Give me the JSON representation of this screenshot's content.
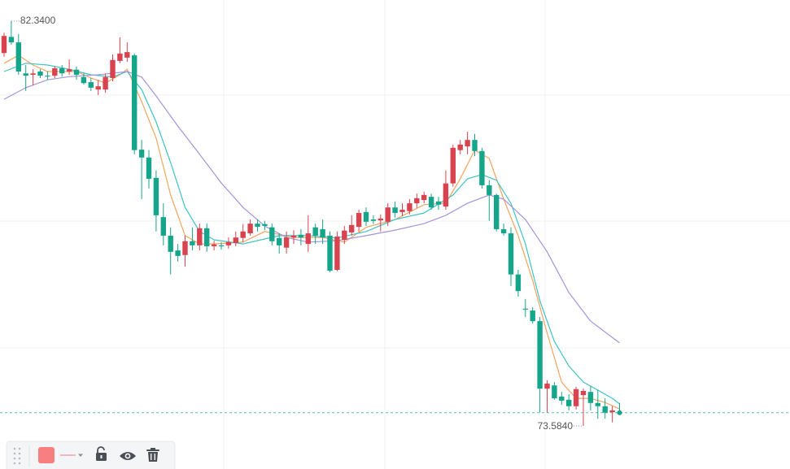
{
  "chart_data": {
    "type": "candlestick",
    "up_color": "#d9434f",
    "down_color": "#15a58a",
    "high_label": "82.3400",
    "low_label": "73.5840",
    "candles": [
      [
        81.65,
        82.09,
        81.57,
        82.02
      ],
      [
        82.0,
        82.34,
        81.83,
        81.88
      ],
      [
        81.88,
        82.06,
        81.18,
        81.25
      ],
      [
        81.21,
        81.39,
        80.83,
        81.16
      ],
      [
        81.18,
        81.3,
        80.95,
        81.21
      ],
      [
        81.25,
        81.3,
        81.11,
        81.16
      ],
      [
        81.16,
        81.25,
        81.07,
        81.14
      ],
      [
        81.16,
        81.36,
        81.11,
        81.32
      ],
      [
        81.32,
        81.39,
        81.14,
        81.21
      ],
      [
        81.25,
        81.51,
        81.18,
        81.3
      ],
      [
        81.29,
        81.36,
        81.07,
        81.18
      ],
      [
        81.13,
        81.21,
        80.97,
        81.0
      ],
      [
        81.02,
        81.11,
        80.83,
        80.9
      ],
      [
        80.86,
        81.07,
        80.74,
        80.93
      ],
      [
        80.86,
        81.21,
        80.79,
        81.13
      ],
      [
        81.11,
        81.62,
        81.04,
        81.5
      ],
      [
        81.48,
        81.99,
        81.43,
        81.64
      ],
      [
        81.55,
        81.88,
        81.46,
        81.67
      ],
      [
        81.6,
        81.64,
        79.46,
        79.55
      ],
      [
        79.56,
        79.77,
        78.49,
        79.39
      ],
      [
        79.39,
        79.55,
        78.72,
        78.93
      ],
      [
        78.95,
        79.11,
        77.79,
        78.14
      ],
      [
        78.1,
        78.4,
        77.49,
        77.7
      ],
      [
        77.7,
        77.88,
        76.86,
        77.35
      ],
      [
        77.38,
        77.52,
        77.14,
        77.26
      ],
      [
        77.28,
        77.7,
        77.03,
        77.58
      ],
      [
        77.58,
        77.88,
        77.38,
        77.49
      ],
      [
        77.49,
        77.96,
        77.38,
        77.86
      ],
      [
        77.86,
        77.96,
        77.35,
        77.47
      ],
      [
        77.47,
        77.59,
        77.38,
        77.51
      ],
      [
        77.49,
        77.56,
        77.4,
        77.47
      ],
      [
        77.49,
        77.66,
        77.42,
        77.56
      ],
      [
        77.54,
        77.79,
        77.47,
        77.66
      ],
      [
        77.65,
        77.95,
        77.56,
        77.79
      ],
      [
        77.75,
        78.05,
        77.7,
        77.96
      ],
      [
        77.96,
        78.05,
        77.79,
        77.89
      ],
      [
        77.95,
        78.02,
        77.82,
        77.91
      ],
      [
        77.88,
        77.96,
        77.49,
        77.58
      ],
      [
        77.65,
        77.75,
        77.31,
        77.49
      ],
      [
        77.44,
        77.79,
        77.31,
        77.66
      ],
      [
        77.66,
        77.82,
        77.52,
        77.7
      ],
      [
        77.72,
        77.84,
        77.49,
        77.66
      ],
      [
        77.52,
        78.14,
        77.35,
        77.75
      ],
      [
        77.88,
        77.96,
        77.52,
        77.7
      ],
      [
        77.84,
        78.05,
        77.52,
        77.66
      ],
      [
        77.7,
        77.79,
        76.91,
        76.94
      ],
      [
        76.96,
        77.79,
        76.93,
        77.68
      ],
      [
        77.61,
        77.91,
        77.52,
        77.81
      ],
      [
        77.77,
        78.14,
        77.7,
        77.93
      ],
      [
        77.89,
        78.26,
        77.79,
        78.19
      ],
      [
        78.21,
        78.31,
        77.91,
        78.0
      ],
      [
        78.05,
        78.14,
        77.95,
        78.02
      ],
      [
        78.03,
        78.16,
        77.79,
        78.07
      ],
      [
        78.0,
        78.4,
        77.91,
        78.31
      ],
      [
        78.31,
        78.44,
        78.09,
        78.19
      ],
      [
        78.21,
        78.4,
        78.12,
        78.26
      ],
      [
        78.23,
        78.49,
        78.16,
        78.4
      ],
      [
        78.4,
        78.61,
        78.3,
        78.51
      ],
      [
        78.47,
        78.65,
        78.4,
        78.58
      ],
      [
        78.54,
        78.61,
        78.26,
        78.31
      ],
      [
        78.44,
        78.54,
        78.26,
        78.37
      ],
      [
        78.33,
        79.11,
        78.26,
        78.83
      ],
      [
        78.83,
        79.67,
        78.76,
        79.6
      ],
      [
        79.55,
        79.77,
        79.46,
        79.67
      ],
      [
        79.63,
        79.95,
        79.46,
        79.77
      ],
      [
        79.77,
        79.9,
        79.42,
        79.53
      ],
      [
        79.53,
        79.6,
        78.72,
        78.79
      ],
      [
        78.79,
        78.9,
        78.02,
        78.58
      ],
      [
        78.58,
        78.61,
        77.79,
        77.84
      ],
      [
        77.84,
        77.96,
        77.7,
        77.75
      ],
      [
        77.75,
        77.88,
        76.61,
        76.86
      ],
      [
        76.86,
        76.96,
        76.38,
        76.5
      ],
      [
        76.12,
        76.33,
        75.94,
        76.1
      ],
      [
        76.08,
        76.15,
        75.8,
        75.85
      ],
      [
        75.85,
        75.94,
        73.87,
        74.39
      ],
      [
        74.39,
        74.57,
        73.87,
        74.5
      ],
      [
        74.46,
        74.53,
        74.15,
        74.18
      ],
      [
        74.22,
        74.32,
        74.04,
        74.13
      ],
      [
        74.15,
        74.27,
        73.92,
        74.01
      ],
      [
        74.01,
        74.43,
        73.94,
        74.38
      ],
      [
        74.25,
        74.39,
        73.584,
        74.34
      ],
      [
        74.32,
        74.45,
        73.92,
        74.08
      ],
      [
        74.08,
        74.36,
        73.74,
        74.01
      ],
      [
        74.01,
        74.18,
        73.74,
        73.87
      ],
      [
        73.88,
        74.01,
        73.66,
        73.92
      ],
      [
        73.88,
        74.08,
        73.83,
        73.87
      ]
    ],
    "lines": [
      {
        "color": "#f4a45e",
        "x": [
          0,
          2,
          4,
          6,
          8,
          10,
          12,
          14,
          16,
          17,
          19,
          21,
          23,
          25,
          27,
          29,
          33,
          36,
          40,
          44,
          47,
          50,
          54,
          58,
          61,
          63,
          65,
          67,
          69,
          71,
          73,
          75,
          77,
          79,
          81,
          83,
          85
        ],
        "values": [
          81.43,
          81.6,
          81.39,
          81.25,
          81.25,
          81.25,
          81.11,
          81.0,
          81.18,
          81.3,
          80.6,
          79.81,
          78.58,
          77.7,
          77.52,
          77.52,
          77.56,
          77.79,
          77.66,
          77.66,
          77.56,
          77.88,
          78.05,
          78.37,
          78.4,
          78.93,
          79.55,
          79.37,
          78.49,
          77.7,
          76.73,
          75.59,
          74.53,
          74.18,
          74.18,
          74.09,
          73.95
        ]
      },
      {
        "color": "#3fc4c4",
        "x": [
          0,
          3,
          6,
          9,
          12,
          15,
          17,
          19,
          21,
          23,
          25,
          27,
          29,
          33,
          38,
          42,
          46,
          50,
          54,
          58,
          62,
          64,
          66,
          68,
          70,
          72,
          74,
          76,
          78,
          80,
          82,
          84,
          85
        ],
        "values": [
          81.25,
          81.43,
          81.39,
          81.3,
          81.18,
          81.13,
          81.25,
          80.86,
          80.16,
          79.28,
          78.31,
          77.79,
          77.61,
          77.52,
          77.7,
          77.7,
          77.65,
          77.79,
          78.05,
          78.19,
          78.58,
          78.93,
          79.02,
          78.9,
          78.4,
          77.52,
          76.29,
          75.41,
          74.88,
          74.53,
          74.36,
          74.18,
          74.06
        ]
      },
      {
        "color": "#a793da",
        "x": [
          0,
          3,
          6,
          9,
          13,
          17,
          19,
          21,
          24,
          27,
          30,
          33,
          36,
          39,
          42,
          46,
          50,
          54,
          58,
          61,
          64,
          67,
          69,
          72,
          75,
          78,
          81,
          85
        ],
        "values": [
          80.65,
          80.9,
          81.07,
          81.14,
          81.18,
          81.25,
          81.13,
          80.72,
          80.07,
          79.46,
          78.84,
          78.31,
          77.91,
          77.66,
          77.56,
          77.59,
          77.7,
          77.82,
          77.96,
          78.14,
          78.4,
          78.58,
          78.49,
          78.05,
          77.35,
          76.47,
          75.85,
          75.38
        ]
      }
    ]
  }
}
